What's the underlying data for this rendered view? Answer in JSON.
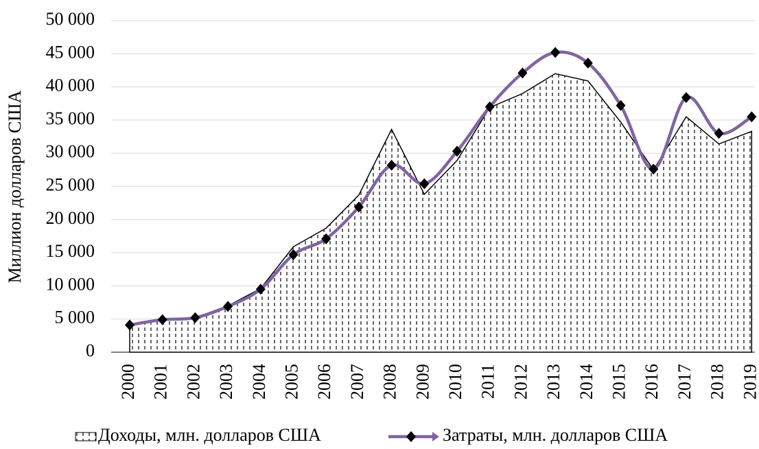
{
  "chart_data": {
    "type": "area-line",
    "y_label": "Миллион долларов США",
    "categories": [
      "2000",
      "2001",
      "2002",
      "2003",
      "2004",
      "2005",
      "2006",
      "2007",
      "2008",
      "2009",
      "2010",
      "2011",
      "2012",
      "2013",
      "2014",
      "2015",
      "2016",
      "2017",
      "2018",
      "2019"
    ],
    "series": [
      {
        "name": "Доходы, млн. долларов США",
        "type": "area",
        "color": "#000000",
        "values": [
          4000,
          4900,
          5200,
          7000,
          9600,
          15900,
          18700,
          23700,
          33600,
          23800,
          28900,
          36900,
          39000,
          42000,
          40900,
          34700,
          27500,
          35500,
          31400,
          33300
        ]
      },
      {
        "name": "Затраты, млн. долларов США",
        "type": "line",
        "color": "#8064a2",
        "smooth": true,
        "values": [
          4100,
          4900,
          5200,
          6900,
          9500,
          14700,
          17100,
          21900,
          28200,
          25400,
          30300,
          37000,
          42100,
          45200,
          43600,
          37200,
          27600,
          38400,
          33000,
          35500
        ]
      }
    ],
    "ylim": [
      0,
      50000
    ],
    "yticks": [
      0,
      {
        "value": 5000,
        "label": "5 000"
      },
      {
        "value": 10000,
        "label": "10 000"
      },
      {
        "value": 15000,
        "label": "15 000"
      },
      {
        "value": 20000,
        "label": "20 000"
      },
      {
        "value": 25000,
        "label": "25 000"
      },
      {
        "value": 30000,
        "label": "30 000"
      },
      {
        "value": 35000,
        "label": "35 000"
      },
      {
        "value": 40000,
        "label": "40 000"
      },
      {
        "value": 45000,
        "label": "45 000"
      },
      {
        "value": 50000,
        "label": "50 000"
      }
    ],
    "grid": true,
    "legend": "bottom"
  }
}
